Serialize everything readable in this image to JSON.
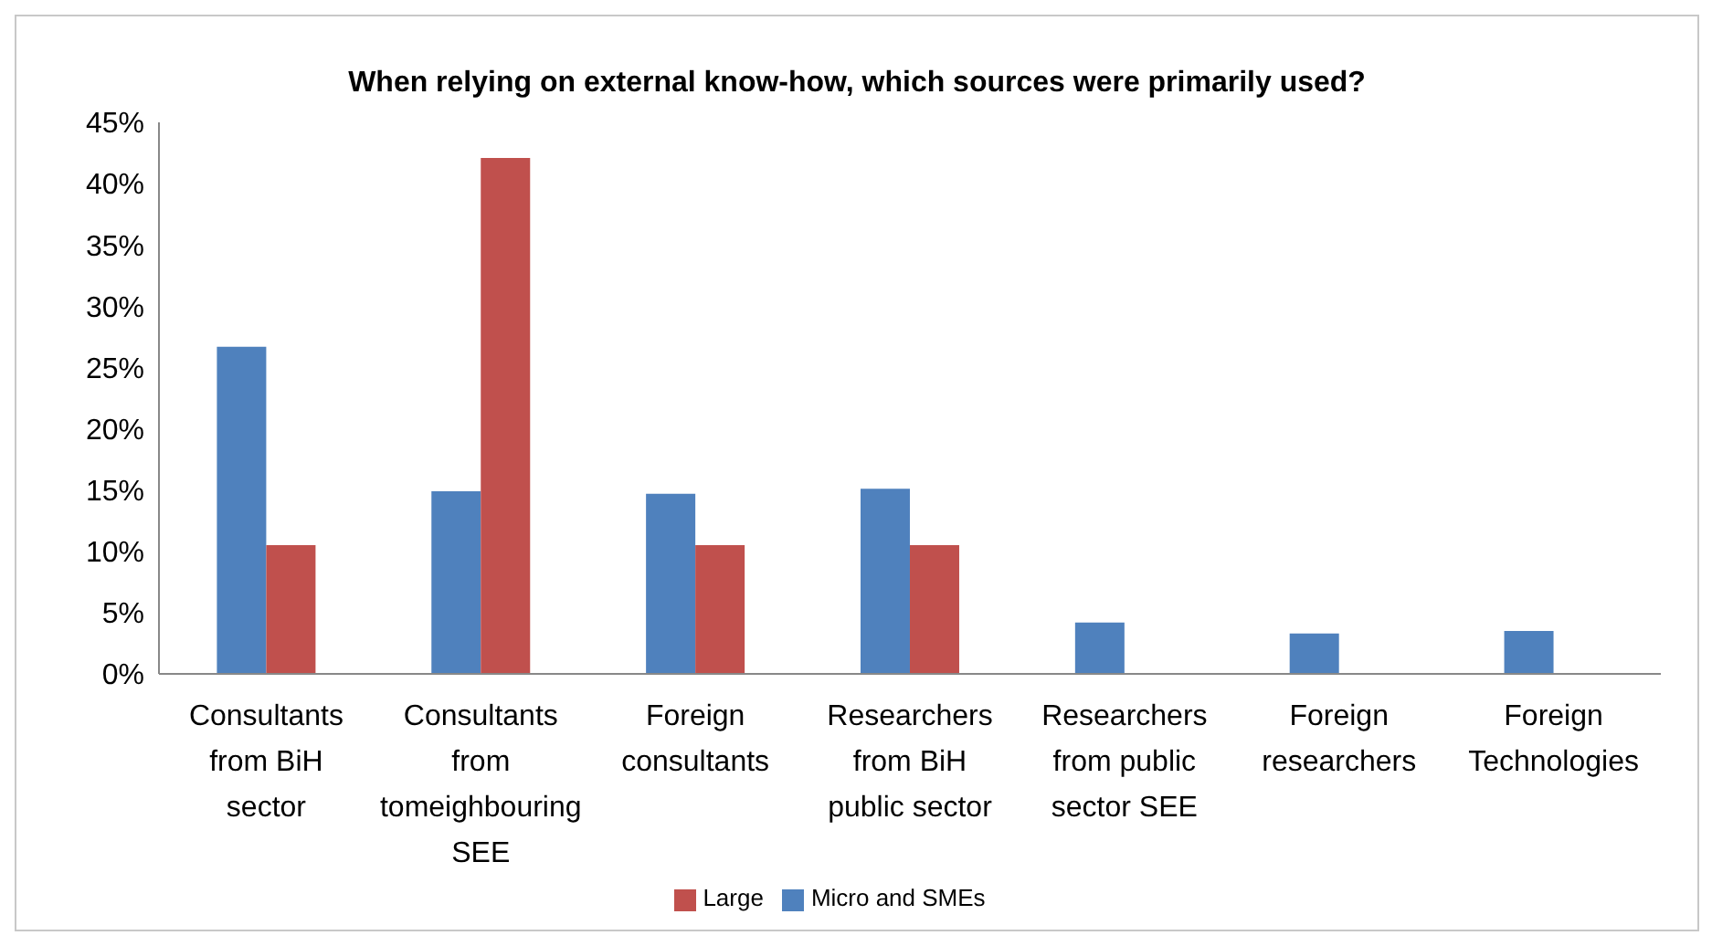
{
  "chart_data": {
    "type": "bar",
    "title": "When relying on external know-how, which sources were primarily used?",
    "categories": [
      "Consultants from BiH sector",
      "Consultants from tomeighbouring SEE",
      "Foreign consultants",
      "Researchers from BiH public sector",
      "Researchers from public sector SEE",
      "Foreign researchers",
      "Foreign Technologies"
    ],
    "series": [
      {
        "name": "Micro and SMEs",
        "color": "#4f81bd",
        "values": [
          26.7,
          14.9,
          14.7,
          15.1,
          4.2,
          3.3,
          3.5
        ]
      },
      {
        "name": "Large",
        "color": "#c0504d",
        "values": [
          10.5,
          42.1,
          10.5,
          10.5,
          null,
          null,
          null
        ]
      }
    ],
    "ylim": [
      0,
      45
    ],
    "yticks": [
      {
        "value": 0,
        "label": "0%"
      },
      {
        "value": 5,
        "label": "5%"
      },
      {
        "value": 10,
        "label": "10%"
      },
      {
        "value": 15,
        "label": "15%"
      },
      {
        "value": 20,
        "label": "20%"
      },
      {
        "value": 25,
        "label": "25%"
      },
      {
        "value": 30,
        "label": "30%"
      },
      {
        "value": 35,
        "label": "35%"
      },
      {
        "value": 40,
        "label": "40%"
      },
      {
        "value": 45,
        "label": "45%"
      }
    ],
    "grid": false,
    "legend": "bottom"
  }
}
